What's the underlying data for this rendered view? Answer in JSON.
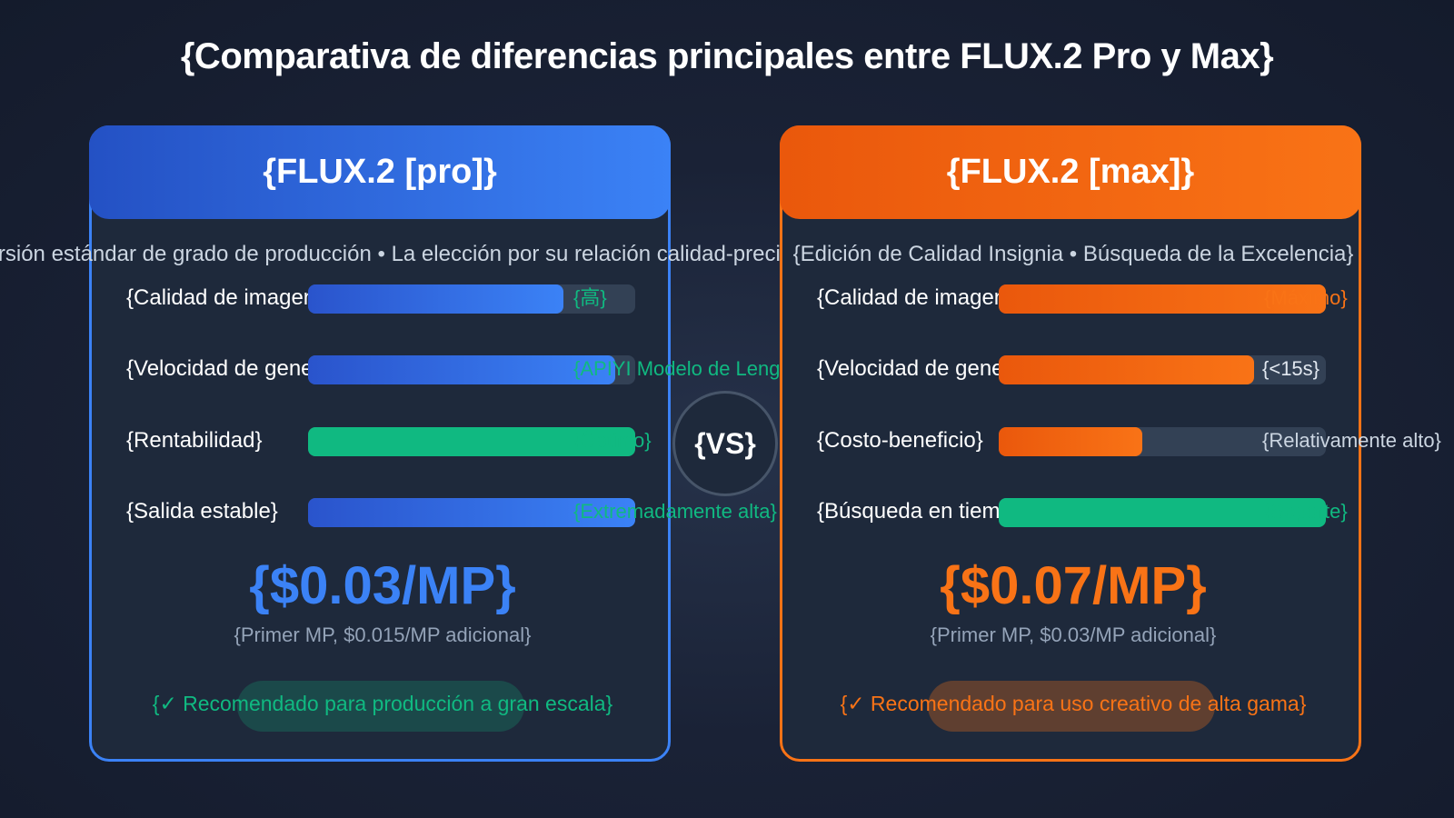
{
  "title": "{Comparativa de diferencias principales entre FLUX.2 Pro y Max}",
  "vs_label": "{VS}",
  "colors": {
    "pro_accent": "#3b82f6",
    "max_accent": "#f97316",
    "green": "#10b981",
    "background": "#1a2236"
  },
  "pro": {
    "header": "{FLUX.2 [pro]}",
    "subtitle": "{Versión estándar de grado de producción • La elección por su relación calidad-precio}",
    "metrics": [
      {
        "label": "{Calidad de imagen}",
        "value": "{高}",
        "level": 0.78
      },
      {
        "label": "{Velocidad de generación}",
        "value": "{APIYI Modelo de Lenguaje}",
        "level": 0.94
      },
      {
        "label": "{Rentabilidad}",
        "value": "{Óptimo}",
        "level": 1.0
      },
      {
        "label": "{Salida estable}",
        "value": "{Extremadamente alta}",
        "level": 1.0
      }
    ],
    "price": "{$0.03/MP}",
    "price_note": "{Primer MP, $0.015/MP adicional}",
    "recommendation": "{✓ Recomendado para producción a gran escala}"
  },
  "max": {
    "header": "{FLUX.2 [max]}",
    "subtitle": "{Edición de Calidad Insignia • Búsqueda de la Excelencia}",
    "metrics": [
      {
        "label": "{Calidad de imagen}",
        "value": "{Máximo}",
        "level": 1.0
      },
      {
        "label": "{Velocidad de generación}",
        "value": "{<15s}",
        "level": 0.78
      },
      {
        "label": "{Costo-beneficio}",
        "value": "{Relativamente alto}",
        "level": 0.44
      },
      {
        "label": "{Búsqueda en tiempo real}",
        "value": "{Soporte}",
        "level": 1.0
      }
    ],
    "price": "{$0.07/MP}",
    "price_note": "{Primer MP, $0.03/MP adicional}",
    "recommendation": "{✓ Recomendado para uso creativo de alta gama}"
  }
}
